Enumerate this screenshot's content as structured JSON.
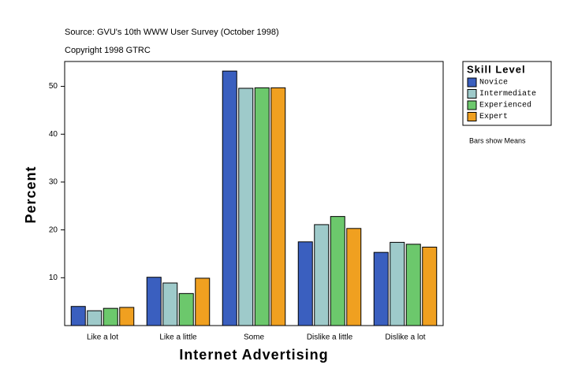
{
  "chart_data": {
    "type": "bar",
    "title": "Source: GVU's 10th WWW User Survey (October 1998)",
    "subtitle": "Copyright 1998 GTRC",
    "annotation": "Bars show Means",
    "x_label": "Internet Advertising",
    "y_label": "Percent",
    "legend_title": "Skill Level",
    "categories": [
      "Like a lot",
      "Like a little",
      "Some",
      "Dislike a little",
      "Dislike a lot"
    ],
    "series": [
      {
        "name": "Novice",
        "color": "#3a5fbf",
        "values": [
          4.0,
          10.1,
          53.2,
          17.5,
          15.3
        ]
      },
      {
        "name": "Intermediate",
        "color": "#9ecaca",
        "values": [
          3.1,
          8.9,
          49.6,
          21.1,
          17.4
        ]
      },
      {
        "name": "Experienced",
        "color": "#6cc86c",
        "values": [
          3.6,
          6.7,
          49.7,
          22.8,
          17.0
        ]
      },
      {
        "name": "Expert",
        "color": "#f0a020",
        "values": [
          3.8,
          9.9,
          49.7,
          20.3,
          16.4
        ]
      }
    ],
    "ylim": [
      0,
      55.2
    ],
    "yticks": [
      10,
      20,
      30,
      40,
      50
    ],
    "grid": false,
    "legend": "right"
  }
}
